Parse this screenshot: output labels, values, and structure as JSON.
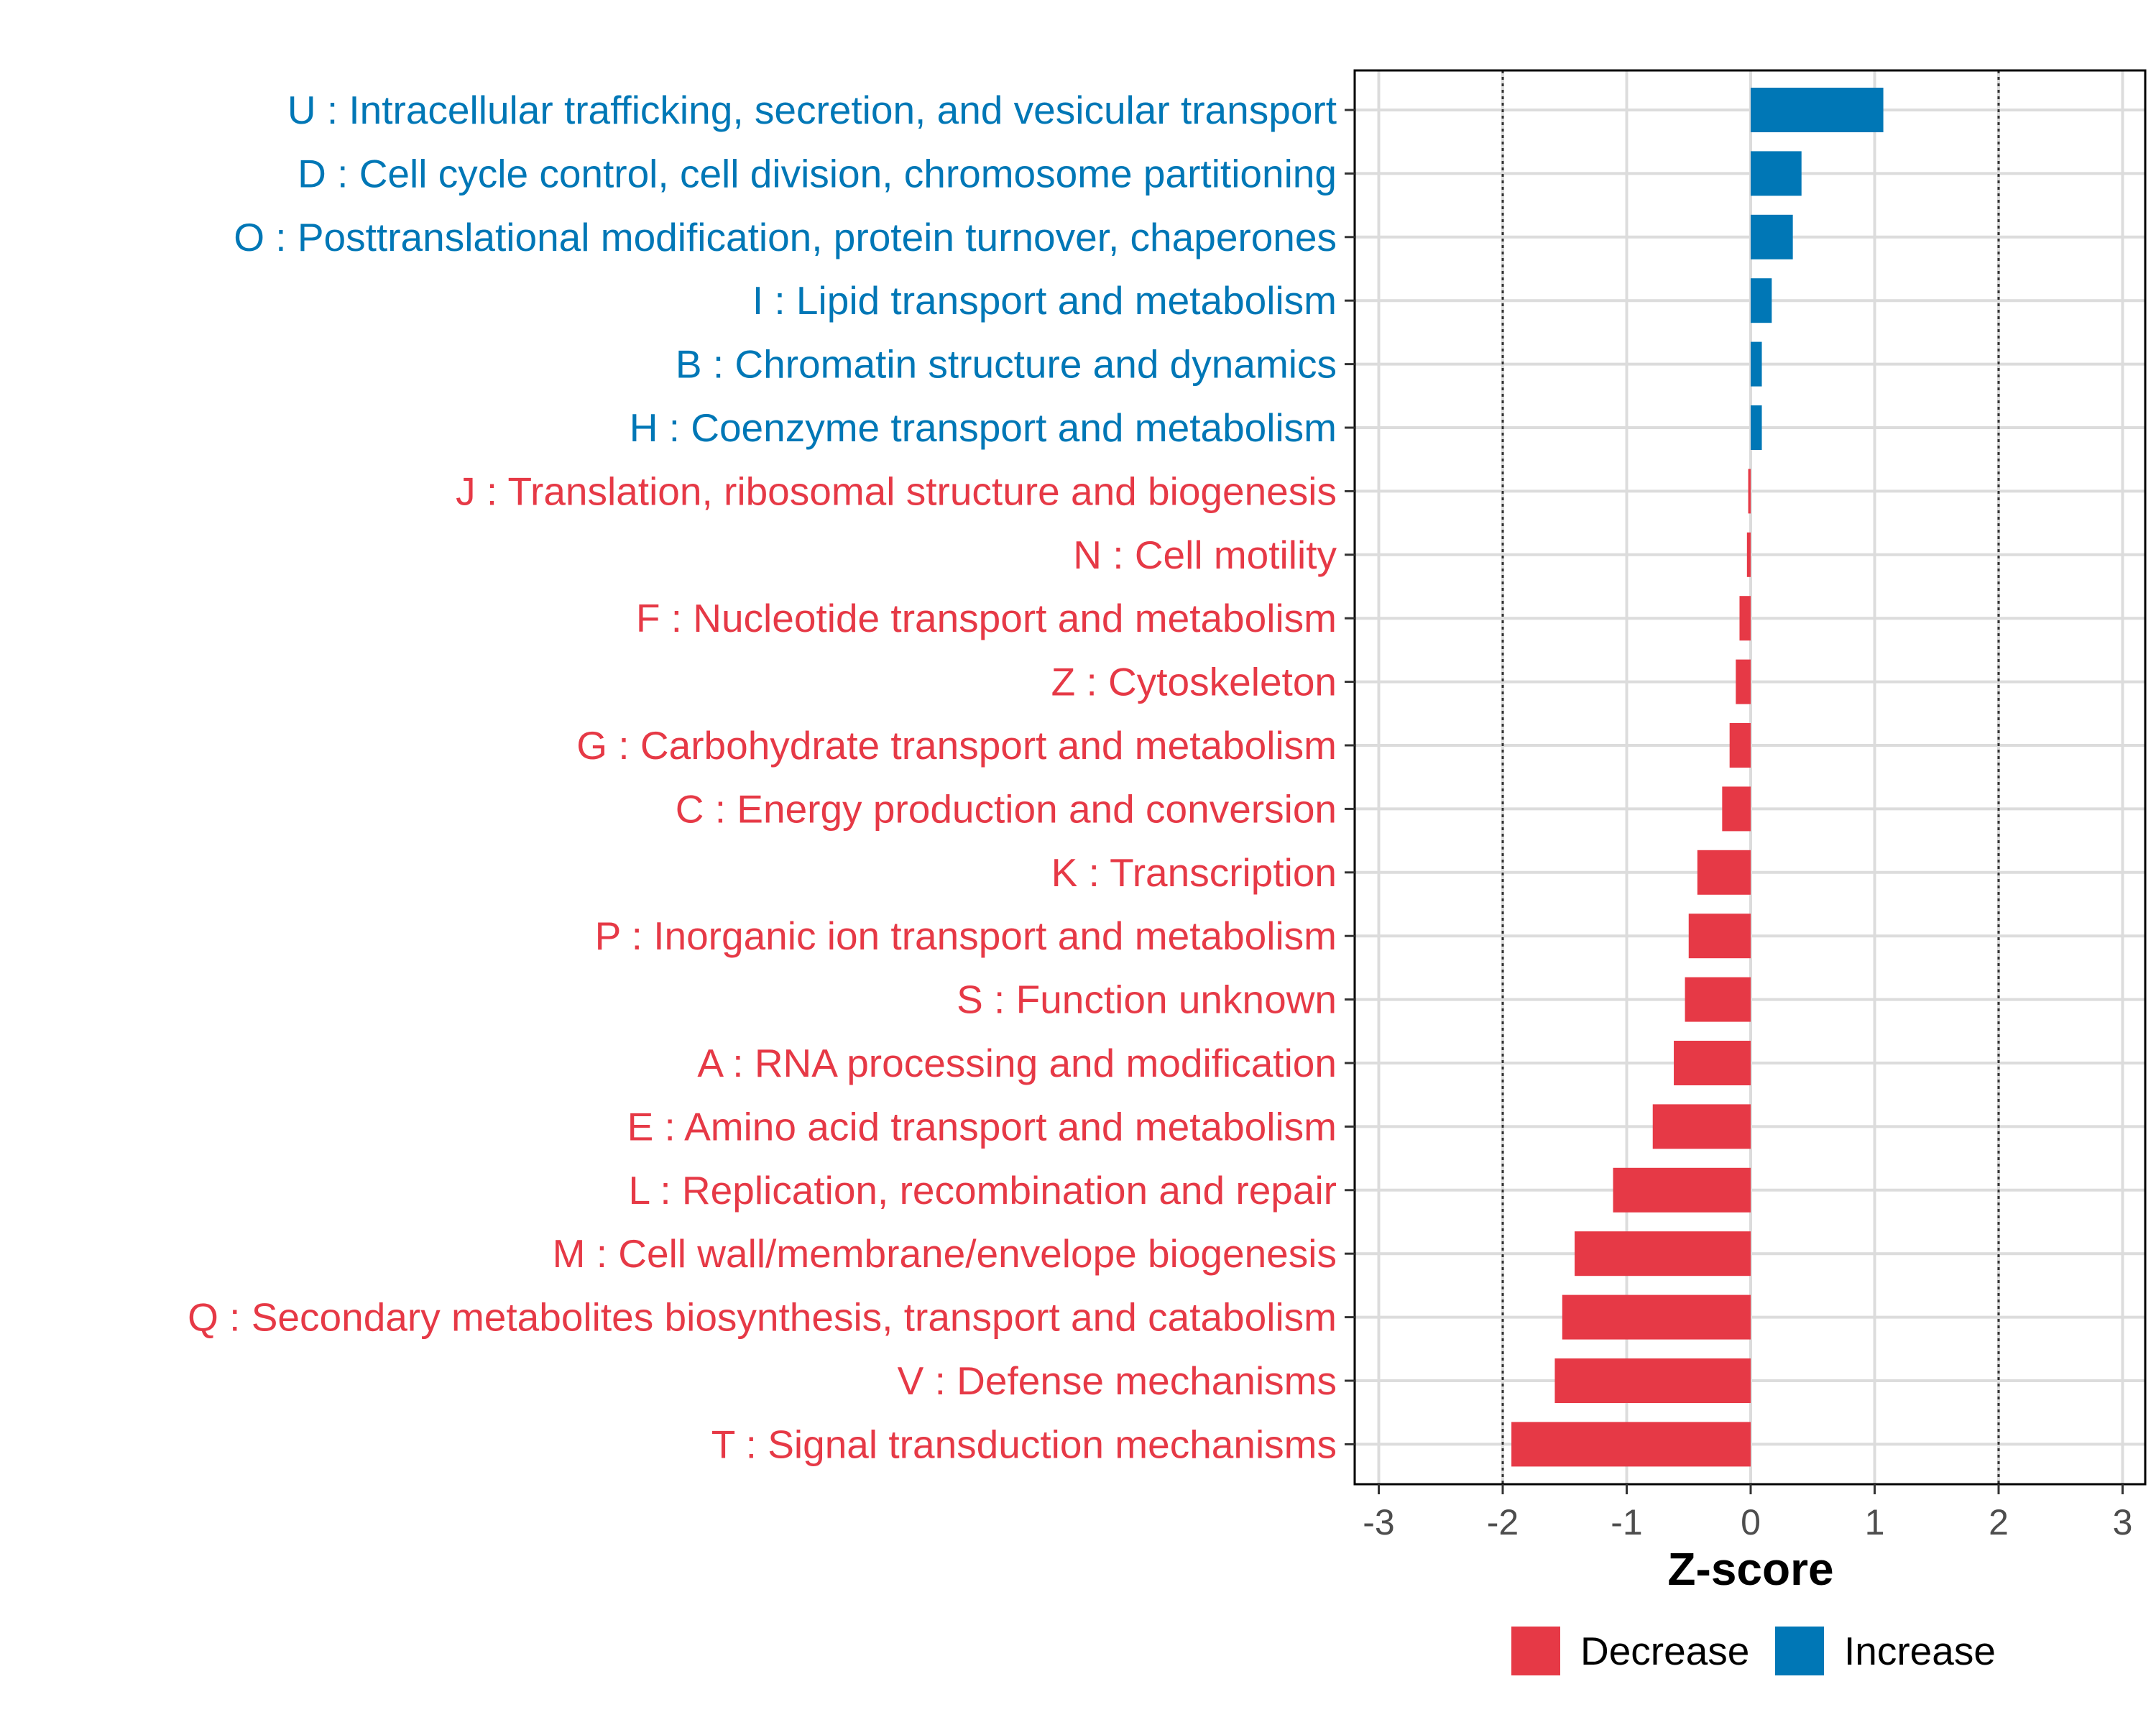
{
  "chart_data": {
    "type": "bar",
    "orientation": "horizontal",
    "xlabel": "Z-score",
    "xlim": [
      -3.2,
      3.2
    ],
    "xticks": [
      -3,
      -2,
      -1,
      0,
      1,
      2,
      3
    ],
    "tick_labels": [
      "-3",
      "-2",
      "-1",
      "0",
      "1",
      "2",
      "3"
    ],
    "reference_lines": [
      -2,
      2
    ],
    "grid": true,
    "colors": {
      "Decrease": "#E63946",
      "Increase": "#0077B6"
    },
    "categories": [
      "U : Intracellular trafficking, secretion, and vesicular transport",
      "D : Cell cycle control, cell division, chromosome partitioning",
      "O : Posttranslational modification, protein turnover, chaperones",
      "I : Lipid transport and metabolism",
      "B : Chromatin structure and dynamics",
      "H : Coenzyme transport and metabolism",
      "J : Translation, ribosomal structure and biogenesis",
      "N : Cell motility",
      "F : Nucleotide transport and metabolism",
      "Z : Cytoskeleton",
      "G : Carbohydrate transport and metabolism",
      "C : Energy production and conversion",
      "K : Transcription",
      "P : Inorganic ion transport and metabolism",
      "S : Function unknown",
      "A : RNA processing and modification",
      "E : Amino acid transport and metabolism",
      "L : Replication, recombination and repair",
      "M : Cell wall/membrane/envelope biogenesis",
      "Q : Secondary metabolites biosynthesis, transport and catabolism",
      "V : Defense mechanisms",
      "T : Signal transduction mechanisms"
    ],
    "values": [
      1.07,
      0.41,
      0.34,
      0.17,
      0.09,
      0.09,
      -0.02,
      -0.03,
      -0.09,
      -0.12,
      -0.17,
      -0.23,
      -0.43,
      -0.5,
      -0.53,
      -0.62,
      -0.79,
      -1.11,
      -1.42,
      -1.52,
      -1.58,
      -1.93
    ],
    "groups": [
      "Increase",
      "Increase",
      "Increase",
      "Increase",
      "Increase",
      "Increase",
      "Decrease",
      "Decrease",
      "Decrease",
      "Decrease",
      "Decrease",
      "Decrease",
      "Decrease",
      "Decrease",
      "Decrease",
      "Decrease",
      "Decrease",
      "Decrease",
      "Decrease",
      "Decrease",
      "Decrease",
      "Decrease"
    ],
    "legend": {
      "position": "bottom",
      "entries": [
        {
          "label": "Decrease",
          "color": "#E63946"
        },
        {
          "label": "Increase",
          "color": "#0077B6"
        }
      ]
    }
  }
}
